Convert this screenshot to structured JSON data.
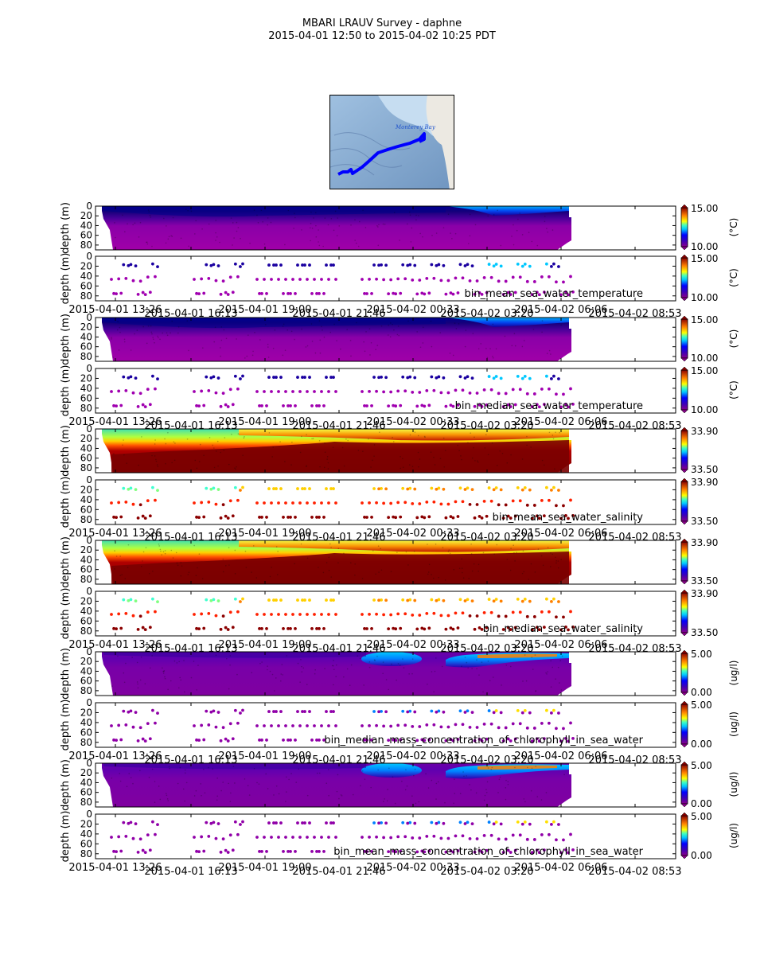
{
  "figure": {
    "title_line1": "MBARI LRAUV Survey - daphne",
    "title_line2": "2015-04-01 12:50  to  2015-04-02 10:25 PDT"
  },
  "map": {
    "label": "Monterey Bay",
    "track_color": "#0000ff"
  },
  "chart_data": [
    {
      "type": "heatmap",
      "variable": "bin_mean_sea_water_temperature",
      "ylabel": "depth (m)",
      "yticks": [
        0,
        20,
        40,
        60,
        80
      ],
      "ylim": [
        90,
        0
      ],
      "xticks": [
        "2015-04-01  13:26",
        "2015-04-01  16:13",
        "2015-04-01  19:00",
        "2015-04-01  21:46",
        "2015-04-02  00:33",
        "2015-04-02  03:20",
        "2015-04-02  06:06",
        "2015-04-02  08:53"
      ],
      "colorbar": {
        "min": "10.00",
        "max": "15.00",
        "units": "(°C)"
      },
      "panels": [
        "gridded",
        "samples"
      ]
    },
    {
      "type": "heatmap",
      "variable": "bin_median_sea_water_temperature",
      "ylabel": "depth (m)",
      "yticks": [
        0,
        20,
        40,
        60,
        80
      ],
      "ylim": [
        90,
        0
      ],
      "xticks": [
        "2015-04-01  13:26",
        "2015-04-01  16:13",
        "2015-04-01  19:00",
        "2015-04-01  21:46",
        "2015-04-02  00:33",
        "2015-04-02  03:20",
        "2015-04-02  06:06",
        "2015-04-02  08:53"
      ],
      "colorbar": {
        "min": "10.00",
        "max": "15.00",
        "units": "(°C)"
      },
      "panels": [
        "gridded",
        "samples"
      ]
    },
    {
      "type": "heatmap",
      "variable": "bin_mean_sea_water_salinity",
      "ylabel": "depth (m)",
      "yticks": [
        0,
        20,
        40,
        60,
        80
      ],
      "ylim": [
        90,
        0
      ],
      "xticks": [
        "2015-04-01  13:26",
        "2015-04-01  16:13",
        "2015-04-01  19:00",
        "2015-04-01  21:46",
        "2015-04-02  00:33",
        "2015-04-02  03:20",
        "2015-04-02  06:06",
        "2015-04-02  08:53"
      ],
      "colorbar": {
        "min": "33.50",
        "max": "33.90",
        "units": ""
      },
      "panels": [
        "gridded",
        "samples"
      ]
    },
    {
      "type": "heatmap",
      "variable": "bin_median_sea_water_salinity",
      "ylabel": "depth (m)",
      "yticks": [
        0,
        20,
        40,
        60,
        80
      ],
      "ylim": [
        90,
        0
      ],
      "xticks": [
        "2015-04-01  13:26",
        "2015-04-01  16:13",
        "2015-04-01  19:00",
        "2015-04-01  21:46",
        "2015-04-02  00:33",
        "2015-04-02  03:20",
        "2015-04-02  06:06",
        "2015-04-02  08:53"
      ],
      "colorbar": {
        "min": "33.50",
        "max": "33.90",
        "units": ""
      },
      "panels": [
        "gridded",
        "samples"
      ]
    },
    {
      "type": "heatmap",
      "variable": "bin_median_mass_concentration_of_chlorophyll_in_sea_water",
      "ylabel": "depth (m)",
      "yticks": [
        0,
        20,
        40,
        60,
        80
      ],
      "ylim": [
        90,
        0
      ],
      "xticks": [
        "2015-04-01  13:26",
        "2015-04-01  16:13",
        "2015-04-01  19:00",
        "2015-04-01  21:46",
        "2015-04-02  00:33",
        "2015-04-02  03:20",
        "2015-04-02  06:06",
        "2015-04-02  08:53"
      ],
      "colorbar": {
        "min": "0.00",
        "max": "5.00",
        "units": "(ug/l)"
      },
      "panels": [
        "gridded",
        "samples"
      ]
    },
    {
      "type": "heatmap",
      "variable": "bin_mean_mass_concentration_of_chlorophyll_in_sea_water",
      "ylabel": "depth (m)",
      "yticks": [
        0,
        20,
        40,
        60,
        80
      ],
      "ylim": [
        90,
        0
      ],
      "xticks": [
        "2015-04-01  13:26",
        "2015-04-01  16:13",
        "2015-04-01  19:00",
        "2015-04-01  21:46",
        "2015-04-02  00:33",
        "2015-04-02  03:20",
        "2015-04-02  06:06",
        "2015-04-02  08:53"
      ],
      "colorbar": {
        "min": "0.00",
        "max": "5.00",
        "units": "(ug/l)"
      },
      "panels": [
        "gridded",
        "samples"
      ]
    }
  ]
}
